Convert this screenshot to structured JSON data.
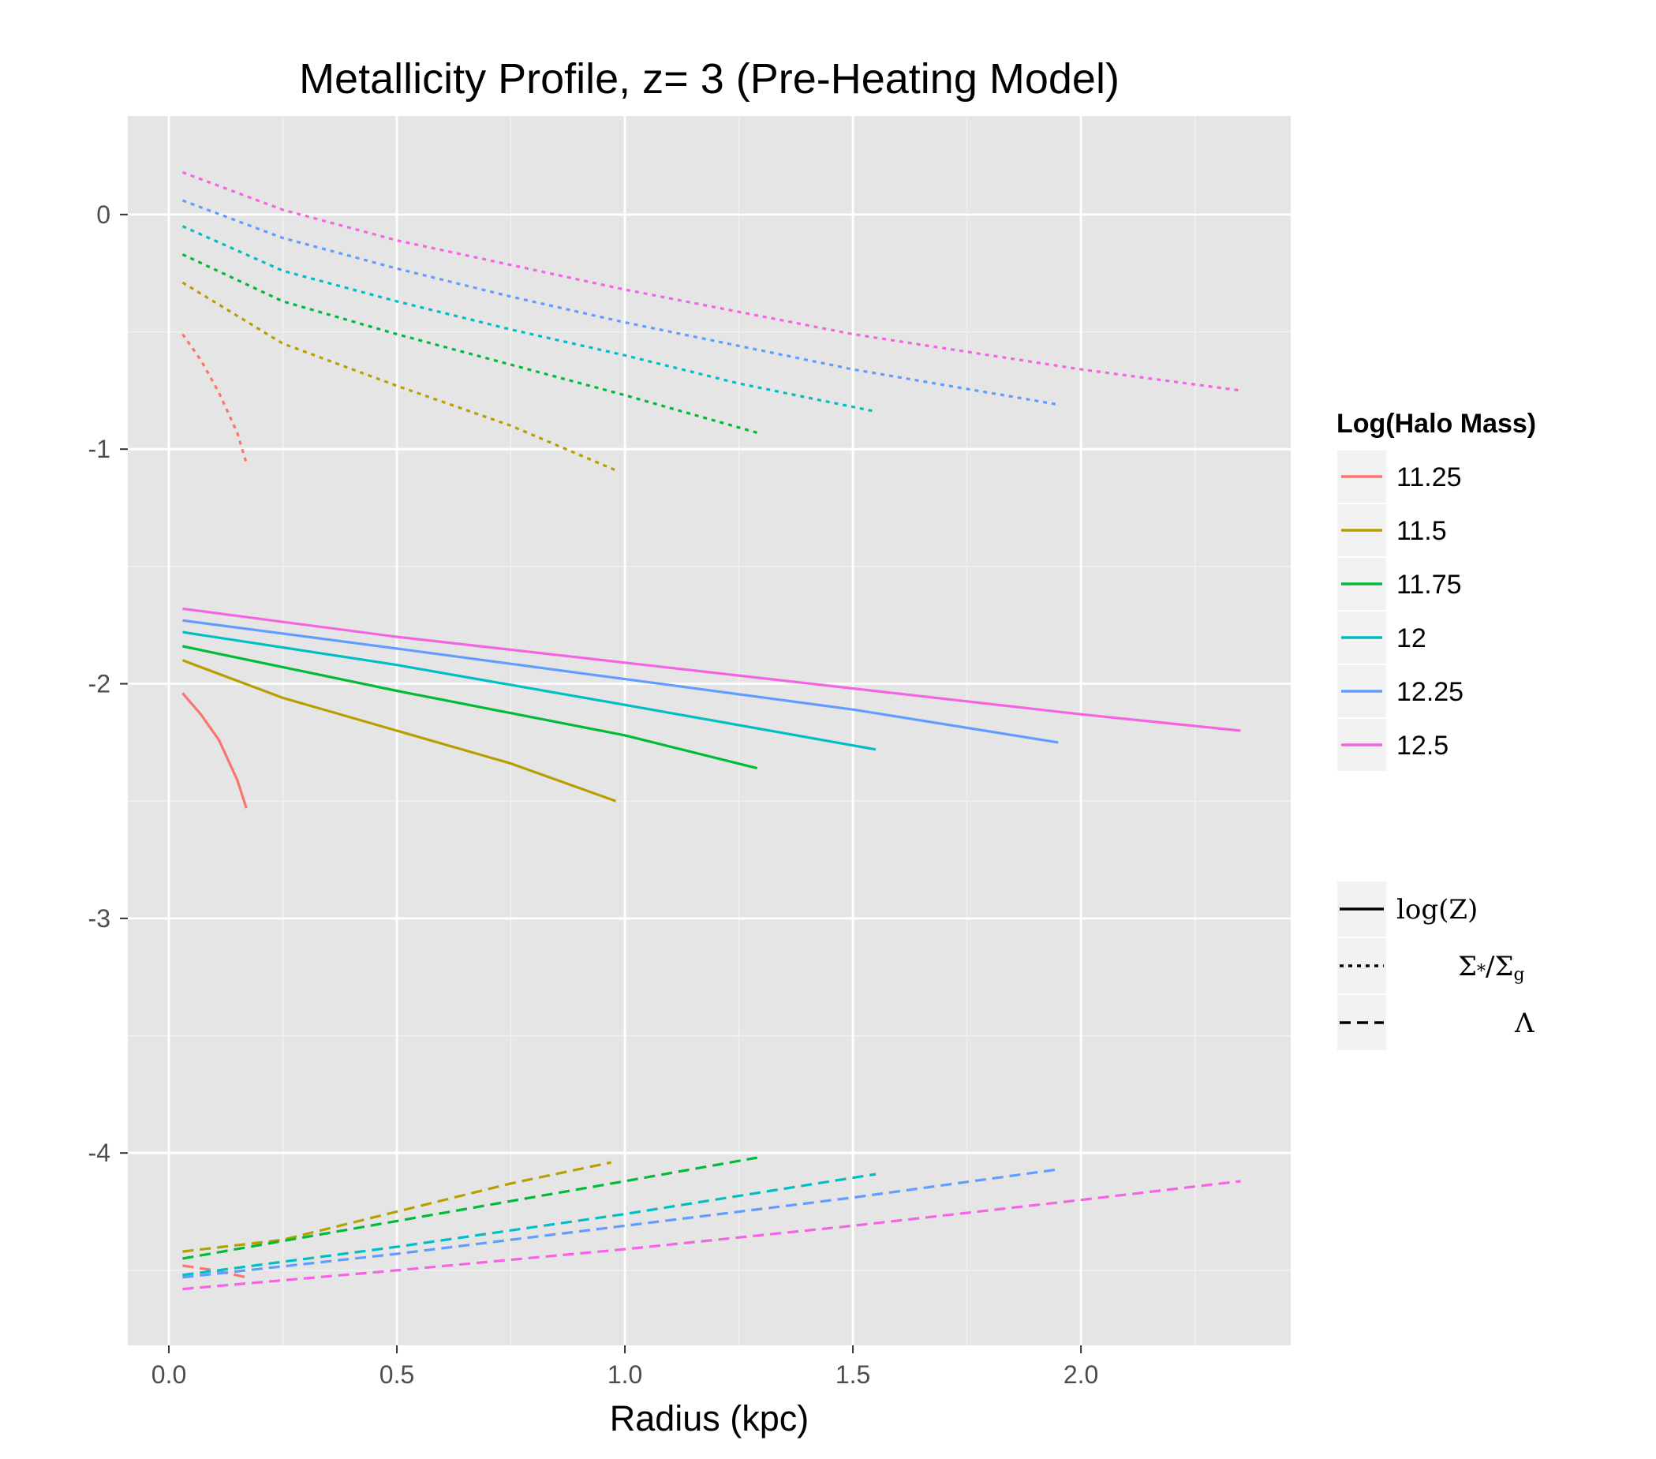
{
  "chart_data": {
    "type": "line",
    "title": "Metallicity Profile, z= 3 (Pre-Heating Model)",
    "xlabel": "Radius (kpc)",
    "ylabel": "",
    "xlim": [
      -0.09,
      2.46
    ],
    "ylim": [
      -4.82,
      0.42
    ],
    "x_ticks": [
      0.0,
      0.5,
      1.0,
      1.5,
      2.0
    ],
    "x_tick_labels": [
      "0.0",
      "0.5",
      "1.0",
      "1.5",
      "2.0"
    ],
    "y_ticks": [
      0,
      -1,
      -2,
      -3,
      -4
    ],
    "y_tick_labels": [
      "0",
      "-1",
      "-2",
      "-3",
      "-4"
    ],
    "grid": true,
    "legend_color_title": "Log(Halo Mass)",
    "legend_position": "right",
    "color_legend": [
      {
        "label": "11.25",
        "color": "#F8766D"
      },
      {
        "label": "11.5",
        "color": "#B79F00"
      },
      {
        "label": "11.75",
        "color": "#00BA38"
      },
      {
        "label": "12",
        "color": "#00BFC4"
      },
      {
        "label": "12.25",
        "color": "#619CFF"
      },
      {
        "label": "12.5",
        "color": "#F564E3"
      }
    ],
    "linetype_legend": [
      {
        "label_parts": [
          "log(Z)"
        ],
        "linetype": "solid"
      },
      {
        "label_parts": [
          "Σ",
          "*",
          "/Σ",
          "g"
        ],
        "linetype": "dotted"
      },
      {
        "label_parts": [
          "Λ"
        ],
        "linetype": "dashed"
      }
    ],
    "series": [
      {
        "mass": "11.25",
        "color": "#F8766D",
        "linetype": "dotted",
        "x": [
          0.03,
          0.07,
          0.11,
          0.15,
          0.17
        ],
        "y": [
          -0.51,
          -0.62,
          -0.76,
          -0.93,
          -1.06
        ]
      },
      {
        "mass": "11.5",
        "color": "#B79F00",
        "linetype": "dotted",
        "x": [
          0.03,
          0.25,
          0.5,
          0.75,
          0.98
        ],
        "y": [
          -0.29,
          -0.55,
          -0.73,
          -0.9,
          -1.09
        ]
      },
      {
        "mass": "11.75",
        "color": "#00BA38",
        "linetype": "dotted",
        "x": [
          0.03,
          0.25,
          0.5,
          0.75,
          1.0,
          1.29
        ],
        "y": [
          -0.17,
          -0.37,
          -0.51,
          -0.64,
          -0.77,
          -0.93
        ]
      },
      {
        "mass": "12",
        "color": "#00BFC4",
        "linetype": "dotted",
        "x": [
          0.03,
          0.25,
          0.5,
          0.75,
          1.0,
          1.25,
          1.55
        ],
        "y": [
          -0.05,
          -0.24,
          -0.37,
          -0.49,
          -0.6,
          -0.72,
          -0.84
        ]
      },
      {
        "mass": "12.25",
        "color": "#619CFF",
        "linetype": "dotted",
        "x": [
          0.03,
          0.25,
          0.5,
          0.75,
          1.0,
          1.5,
          1.95
        ],
        "y": [
          0.06,
          -0.1,
          -0.23,
          -0.35,
          -0.46,
          -0.66,
          -0.81
        ]
      },
      {
        "mass": "12.5",
        "color": "#F564E3",
        "linetype": "dotted",
        "x": [
          0.03,
          0.25,
          0.5,
          1.0,
          1.5,
          2.0,
          2.35
        ],
        "y": [
          0.18,
          0.02,
          -0.11,
          -0.32,
          -0.51,
          -0.66,
          -0.75
        ]
      },
      {
        "mass": "11.25",
        "color": "#F8766D",
        "linetype": "solid",
        "x": [
          0.03,
          0.07,
          0.11,
          0.15,
          0.17
        ],
        "y": [
          -2.04,
          -2.13,
          -2.24,
          -2.41,
          -2.53
        ]
      },
      {
        "mass": "11.5",
        "color": "#B79F00",
        "linetype": "solid",
        "x": [
          0.03,
          0.25,
          0.5,
          0.75,
          0.98
        ],
        "y": [
          -1.9,
          -2.06,
          -2.2,
          -2.34,
          -2.5
        ]
      },
      {
        "mass": "11.75",
        "color": "#00BA38",
        "linetype": "solid",
        "x": [
          0.03,
          0.5,
          1.0,
          1.29
        ],
        "y": [
          -1.84,
          -2.03,
          -2.22,
          -2.36
        ]
      },
      {
        "mass": "12",
        "color": "#00BFC4",
        "linetype": "solid",
        "x": [
          0.03,
          0.5,
          1.0,
          1.55
        ],
        "y": [
          -1.78,
          -1.92,
          -2.09,
          -2.28
        ]
      },
      {
        "mass": "12.25",
        "color": "#619CFF",
        "linetype": "solid",
        "x": [
          0.03,
          0.5,
          1.0,
          1.5,
          1.95
        ],
        "y": [
          -1.73,
          -1.85,
          -1.98,
          -2.11,
          -2.25
        ]
      },
      {
        "mass": "12.5",
        "color": "#F564E3",
        "linetype": "solid",
        "x": [
          0.03,
          0.5,
          1.0,
          1.5,
          2.0,
          2.35
        ],
        "y": [
          -1.68,
          -1.8,
          -1.91,
          -2.02,
          -2.13,
          -2.2
        ]
      },
      {
        "mass": "11.25",
        "color": "#F8766D",
        "linetype": "dashed",
        "x": [
          0.03,
          0.1,
          0.17
        ],
        "y": [
          -4.48,
          -4.5,
          -4.53
        ]
      },
      {
        "mass": "11.5",
        "color": "#B79F00",
        "linetype": "dashed",
        "x": [
          0.03,
          0.25,
          0.5,
          0.75,
          0.97
        ],
        "y": [
          -4.42,
          -4.37,
          -4.25,
          -4.13,
          -4.04
        ]
      },
      {
        "mass": "11.75",
        "color": "#00BA38",
        "linetype": "dashed",
        "x": [
          0.03,
          0.5,
          1.0,
          1.29
        ],
        "y": [
          -4.45,
          -4.29,
          -4.12,
          -4.02
        ]
      },
      {
        "mass": "12",
        "color": "#00BFC4",
        "linetype": "dashed",
        "x": [
          0.03,
          0.5,
          1.0,
          1.55
        ],
        "y": [
          -4.52,
          -4.4,
          -4.26,
          -4.09
        ]
      },
      {
        "mass": "12.25",
        "color": "#619CFF",
        "linetype": "dashed",
        "x": [
          0.03,
          0.5,
          1.0,
          1.5,
          1.95
        ],
        "y": [
          -4.53,
          -4.43,
          -4.31,
          -4.19,
          -4.07
        ]
      },
      {
        "mass": "12.5",
        "color": "#F564E3",
        "linetype": "dashed",
        "x": [
          0.03,
          0.5,
          1.0,
          1.5,
          2.0,
          2.35
        ],
        "y": [
          -4.58,
          -4.5,
          -4.41,
          -4.31,
          -4.2,
          -4.12
        ]
      }
    ]
  }
}
